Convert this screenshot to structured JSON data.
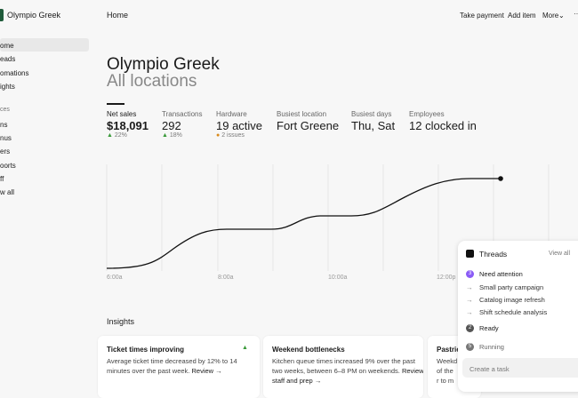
{
  "header": {
    "business": "Olympio Greek",
    "title": "Home",
    "actions": [
      "Take payment",
      "Add item",
      "More"
    ],
    "more_icon": "···"
  },
  "sidebar": {
    "items": [
      "ome",
      "eads",
      "omations",
      "ights"
    ],
    "section": "ces",
    "section_items": [
      "ns",
      "nus",
      "ers",
      "oorts",
      "ff",
      "w all"
    ]
  },
  "main": {
    "title": "Olympio Greek",
    "subtitle": "All locations"
  },
  "stats": [
    {
      "label": "Net sales",
      "value": "$18,091",
      "change": "22%"
    },
    {
      "label": "Transactions",
      "value": "292",
      "change": "18%"
    },
    {
      "label": "Hardware",
      "value": "19 active",
      "change": "2 issues"
    },
    {
      "label": "Busiest location",
      "value": "Fort Greene"
    },
    {
      "label": "Busiest days",
      "value": "Thu, Sat"
    },
    {
      "label": "Employees",
      "value": "12 clocked in"
    }
  ],
  "chart": {
    "x_labels": [
      "6:00a",
      "8:00a",
      "10:00a",
      "12:00p"
    ]
  },
  "insights": {
    "title": "Insights",
    "cards": [
      {
        "title": "Ticket times improving",
        "body": "Average ticket time decreased by 12% to 14 minutes over the past week.",
        "link": "Review →"
      },
      {
        "title": "Weekend bottlenecks",
        "body": "Kitchen queue times increased 9% over the past two weeks, between 6–8 PM on weekends.",
        "link": "Review staff and prep →"
      },
      {
        "title": "Pastrie",
        "body": "Weekd of the r to m",
        "link": ""
      }
    ]
  },
  "threads": {
    "title": "Threads",
    "view_all": "View all",
    "groups": [
      {
        "badge": "3",
        "name": "Need attention",
        "items": [
          "Small party campaign",
          "Catalog image refresh",
          "Shift schedule analysis"
        ]
      },
      {
        "badge": "2",
        "name": "Ready"
      },
      {
        "badge": "5",
        "name": "Running"
      }
    ],
    "input": "Create a task"
  }
}
